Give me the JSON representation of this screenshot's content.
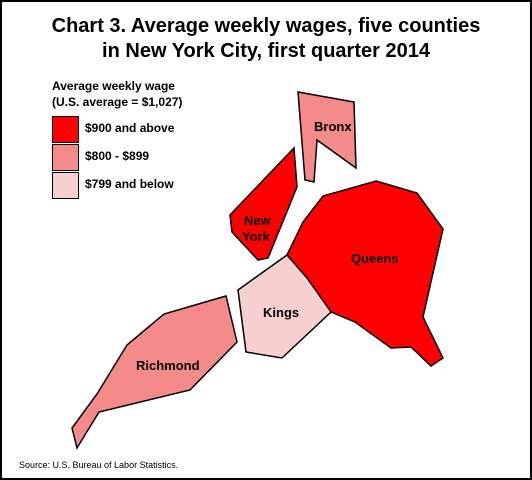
{
  "title": {
    "line1": "Chart 3. Average weekly wages, five counties",
    "line2": "in New York City, first quarter 2014"
  },
  "legend": {
    "title_line1": "Average weekly wage",
    "title_line2": "(U.S. average = $1,027)",
    "items": [
      {
        "label": "$900 and above",
        "color": "#ff0000"
      },
      {
        "label": "$800 - $899",
        "color": "#f48a8a"
      },
      {
        "label": "$799 and below",
        "color": "#f8cfcf"
      }
    ]
  },
  "counties": {
    "bronx": {
      "label": "Bronx",
      "wage_range": "$800 - $899",
      "color": "#f48a8a"
    },
    "new_york": {
      "label_line1": "New",
      "label_line2": "York",
      "wage_range": "$900 and above",
      "color": "#ff0000"
    },
    "queens": {
      "label": "Queens",
      "wage_range": "$900 and above",
      "color": "#ff0000"
    },
    "kings": {
      "label": "Kings",
      "wage_range": "$799 and below",
      "color": "#f8cfcf"
    },
    "richmond": {
      "label": "Richmond",
      "wage_range": "$800 - $899",
      "color": "#f48a8a"
    }
  },
  "source": "Source: U.S. Bureau of Labor Statistics."
}
